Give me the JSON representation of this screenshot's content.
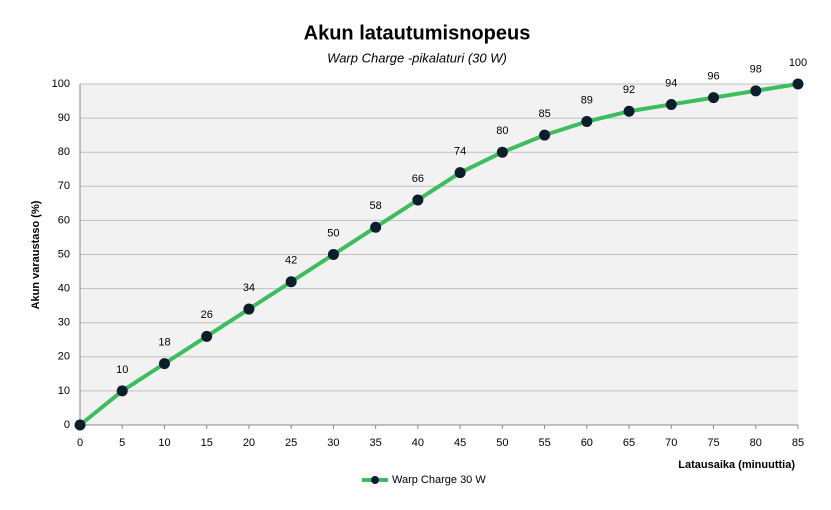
{
  "chart_data": {
    "type": "line",
    "title": "Akun latautumisnopeus",
    "subtitle": "Warp Charge -pikalaturi (30 W)",
    "x_label": "Latausaika  (minuuttia)",
    "y_label": "Akun varaustaso  (%)",
    "x": [
      0,
      5,
      10,
      15,
      20,
      25,
      30,
      35,
      40,
      45,
      50,
      55,
      60,
      65,
      70,
      75,
      80,
      85
    ],
    "series": [
      {
        "name": "Warp Charge 30 W",
        "color": "#3dbd5d",
        "marker_color": "#0c1e2c",
        "values": [
          0,
          10,
          18,
          26,
          34,
          42,
          50,
          58,
          66,
          74,
          80,
          85,
          89,
          92,
          94,
          96,
          98,
          100
        ],
        "value_labels": [
          null,
          "10",
          "18",
          "26",
          "34",
          "42",
          "50",
          "58",
          "66",
          "74",
          "80",
          "85",
          "89",
          "92",
          "94",
          "96",
          "98",
          "100"
        ]
      }
    ],
    "xlim": [
      0,
      85
    ],
    "xticks": [
      0,
      5,
      10,
      15,
      20,
      25,
      30,
      35,
      40,
      45,
      50,
      55,
      60,
      65,
      70,
      75,
      80,
      85
    ],
    "ylim": [
      0,
      100
    ],
    "yticks": [
      0,
      10,
      20,
      30,
      40,
      50,
      60,
      70,
      80,
      90,
      100
    ],
    "grid": true,
    "legend": "bottom"
  }
}
